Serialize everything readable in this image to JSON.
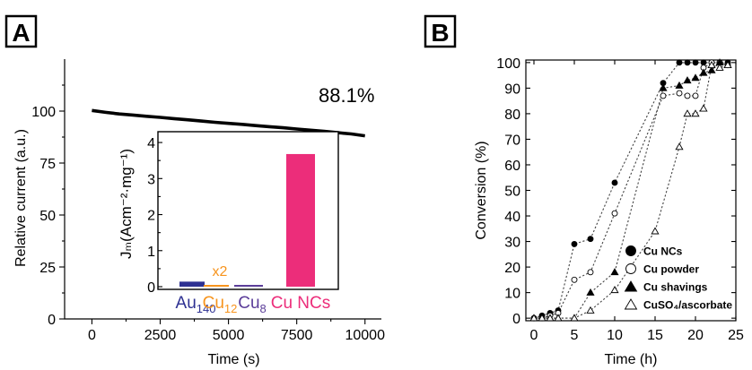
{
  "panels": {
    "a": {
      "letter": "A"
    },
    "b": {
      "letter": "B"
    }
  },
  "chart_data": [
    {
      "id": "A-main",
      "type": "line",
      "xlabel": "Time (s)",
      "ylabel": "Relative current (a.u.)",
      "xlim": [
        -1000,
        10600
      ],
      "ylim": [
        0,
        125
      ],
      "xticks": [
        0,
        2500,
        5000,
        7500,
        10000
      ],
      "yticks": [
        0,
        25,
        50,
        75,
        100
      ],
      "series": [
        {
          "values_x": [
            0,
            500,
            1000,
            1500,
            2000,
            2500,
            3000,
            3500,
            4000,
            4500,
            5000,
            5500,
            6000,
            6500,
            7000,
            7500,
            8000,
            8500,
            9000,
            9500,
            10000
          ],
          "values_y": [
            100.3,
            99.4,
            98.6,
            98.1,
            97.5,
            97.0,
            96.4,
            95.8,
            95.2,
            94.6,
            94.1,
            93.6,
            93.0,
            92.5,
            92.0,
            91.4,
            90.8,
            90.3,
            89.6,
            89.0,
            88.1
          ],
          "color": "#000000"
        }
      ],
      "annotations": [
        {
          "text": "88.1%"
        }
      ],
      "grid": false
    },
    {
      "id": "A-inset",
      "type": "bar",
      "ylabel": "Jₘ(Acm⁻²·mg⁻¹)",
      "ylim": [
        0,
        4.3
      ],
      "yticks": [
        0,
        1,
        2,
        3,
        4
      ],
      "categories": [
        {
          "base": "Au",
          "sub": "140",
          "color": "#2e3192"
        },
        {
          "base": "Cu",
          "sub": "12",
          "color": "#f7941d"
        },
        {
          "base": "Cu",
          "sub": "8",
          "color": "#5b3d99"
        },
        {
          "base": "Cu NCs",
          "sub": "",
          "color": "#ec2d7a"
        }
      ],
      "values": [
        0.14,
        0.02,
        0.04,
        3.68
      ],
      "annotations": [
        {
          "text": "x2",
          "category": 1,
          "color": "#f7941d"
        }
      ],
      "grid": false
    },
    {
      "id": "B",
      "type": "scatter",
      "xlabel": "Time (h)",
      "ylabel": "Conversion (%)",
      "xlim": [
        -1,
        25
      ],
      "ylim": [
        -1,
        101
      ],
      "xticks": [
        0,
        5,
        10,
        15,
        20,
        25
      ],
      "yticks": [
        0,
        10,
        20,
        30,
        40,
        50,
        60,
        70,
        80,
        90,
        100
      ],
      "legend_position": "bottom-right",
      "series": [
        {
          "name": "Cu NCs",
          "marker": "filled-circle",
          "x": [
            0,
            1,
            2,
            3,
            5,
            7,
            10,
            16,
            18,
            19,
            20,
            21,
            22,
            23,
            24
          ],
          "y": [
            0,
            1,
            2,
            3,
            29,
            31,
            53,
            92,
            100,
            100,
            100,
            100,
            100,
            100,
            100
          ]
        },
        {
          "name": "Cu powder",
          "marker": "open-circle",
          "x": [
            0,
            1,
            2,
            3,
            5,
            7,
            10,
            16,
            18,
            19,
            20,
            21,
            22,
            23,
            24
          ],
          "y": [
            0,
            0,
            1,
            2,
            15,
            18,
            41,
            87,
            88,
            87,
            87,
            98,
            100,
            100,
            99
          ]
        },
        {
          "name": "Cu shavings",
          "marker": "filled-triangle",
          "x": [
            0,
            1,
            2,
            3,
            5,
            7,
            10,
            16,
            18,
            19,
            20,
            21,
            22,
            23,
            24
          ],
          "y": [
            0,
            0,
            0,
            0,
            0,
            10,
            18,
            90,
            91,
            93,
            94,
            96,
            97,
            100,
            99
          ]
        },
        {
          "name": "CuSO₄/ascorbate",
          "marker": "open-triangle",
          "x": [
            0,
            1,
            2,
            3,
            5,
            7,
            10,
            15,
            18,
            19,
            20,
            21,
            22,
            23,
            24
          ],
          "y": [
            0,
            0,
            0,
            0,
            0,
            3,
            11,
            34,
            67,
            80,
            80,
            82,
            99,
            98,
            99
          ]
        }
      ],
      "grid": false
    }
  ]
}
